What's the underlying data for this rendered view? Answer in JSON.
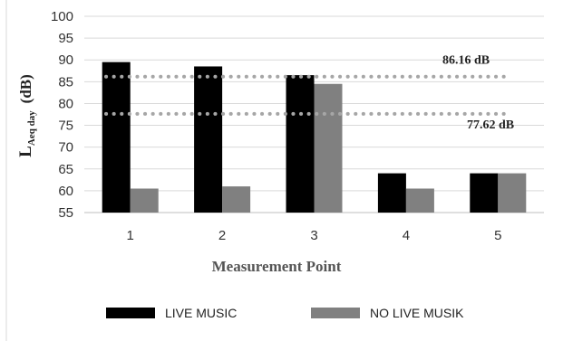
{
  "chart_data": {
    "type": "bar",
    "categories": [
      "1",
      "2",
      "3",
      "4",
      "5"
    ],
    "series": [
      {
        "name": "LIVE MUSIC",
        "values": [
          89.5,
          88.5,
          86.5,
          64,
          64
        ],
        "color": "#000000"
      },
      {
        "name": "NO LIVE MUSIK",
        "values": [
          60.5,
          61,
          84.5,
          60.5,
          64
        ],
        "color": "#808080"
      }
    ],
    "xlabel": "Measurement Point",
    "ylabel": {
      "main": "L",
      "sub": "Aeq day",
      "unit": "(dB)"
    },
    "ylim": [
      55,
      100
    ],
    "yticks": [
      55,
      60,
      65,
      70,
      75,
      80,
      85,
      90,
      95,
      100
    ],
    "grid": true,
    "legend": "bottom",
    "reference_lines": [
      {
        "value": 86.16,
        "label": "86.16 dB"
      },
      {
        "value": 77.62,
        "label": "77.62 dB"
      }
    ]
  }
}
